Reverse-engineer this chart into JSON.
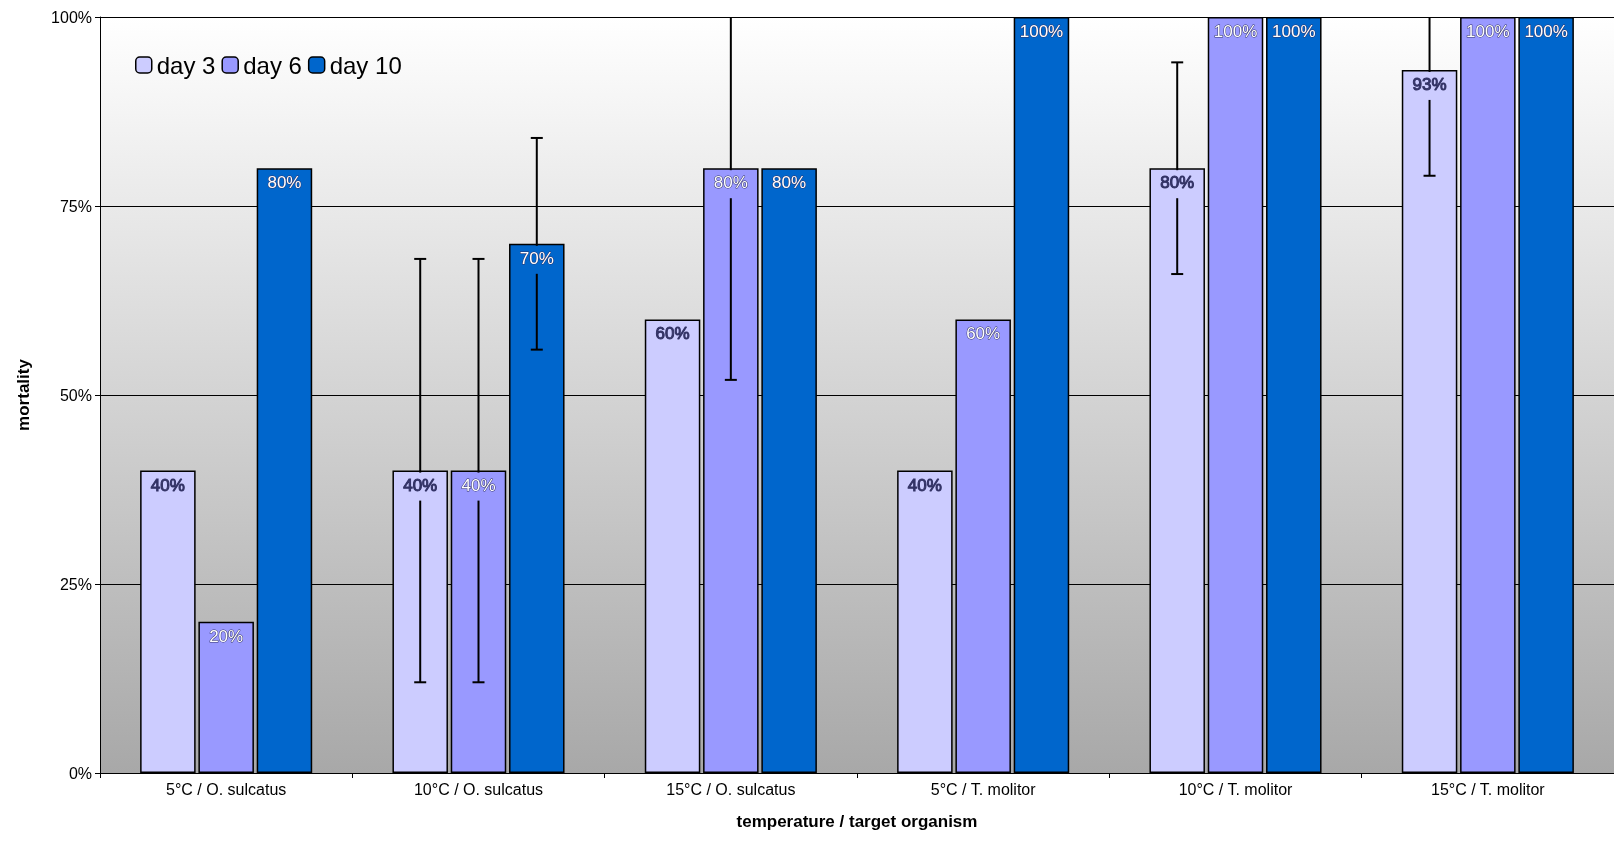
{
  "chart_data": {
    "type": "bar",
    "xlabel": "temperature / target organism",
    "ylabel": "mortality",
    "categories": [
      "5°C / O. sulcatus",
      "10°C / O. sulcatus",
      "15°C / O. sulcatus",
      "5°C / T. molitor",
      "10°C / T. molitor",
      "15°C / T. molitor"
    ],
    "series": [
      {
        "name": "day 3",
        "color": "#ccccff",
        "values": [
          40,
          40,
          60,
          40,
          80,
          93
        ],
        "value_labels": [
          "40%",
          "40%",
          "60%",
          "40%",
          "80%",
          "93%"
        ],
        "errors": [
          null,
          28,
          null,
          null,
          14,
          [
            79,
            100
          ]
        ]
      },
      {
        "name": "day 6",
        "color": "#9999ff",
        "values": [
          20,
          40,
          80,
          60,
          100,
          100
        ],
        "value_labels": [
          "20%",
          "40%",
          "80%",
          "60%",
          "100%",
          "100%"
        ],
        "errors": [
          null,
          28,
          [
            52,
            100
          ],
          null,
          null,
          null
        ]
      },
      {
        "name": "day 10",
        "color": "#0066cc",
        "values": [
          80,
          70,
          80,
          100,
          100,
          100
        ],
        "value_labels": [
          "80%",
          "70%",
          "80%",
          "100%",
          "100%",
          "100%"
        ],
        "errors": [
          null,
          14,
          null,
          null,
          null,
          null
        ]
      }
    ],
    "ylim": [
      0,
      100
    ],
    "yticks": [
      {
        "value": 0,
        "label": "0%"
      },
      {
        "value": 25,
        "label": "25%"
      },
      {
        "value": 50,
        "label": "50%"
      },
      {
        "value": 75,
        "label": "75%"
      },
      {
        "value": 100,
        "label": "100%"
      }
    ],
    "grid": "y",
    "legend": "top left"
  }
}
